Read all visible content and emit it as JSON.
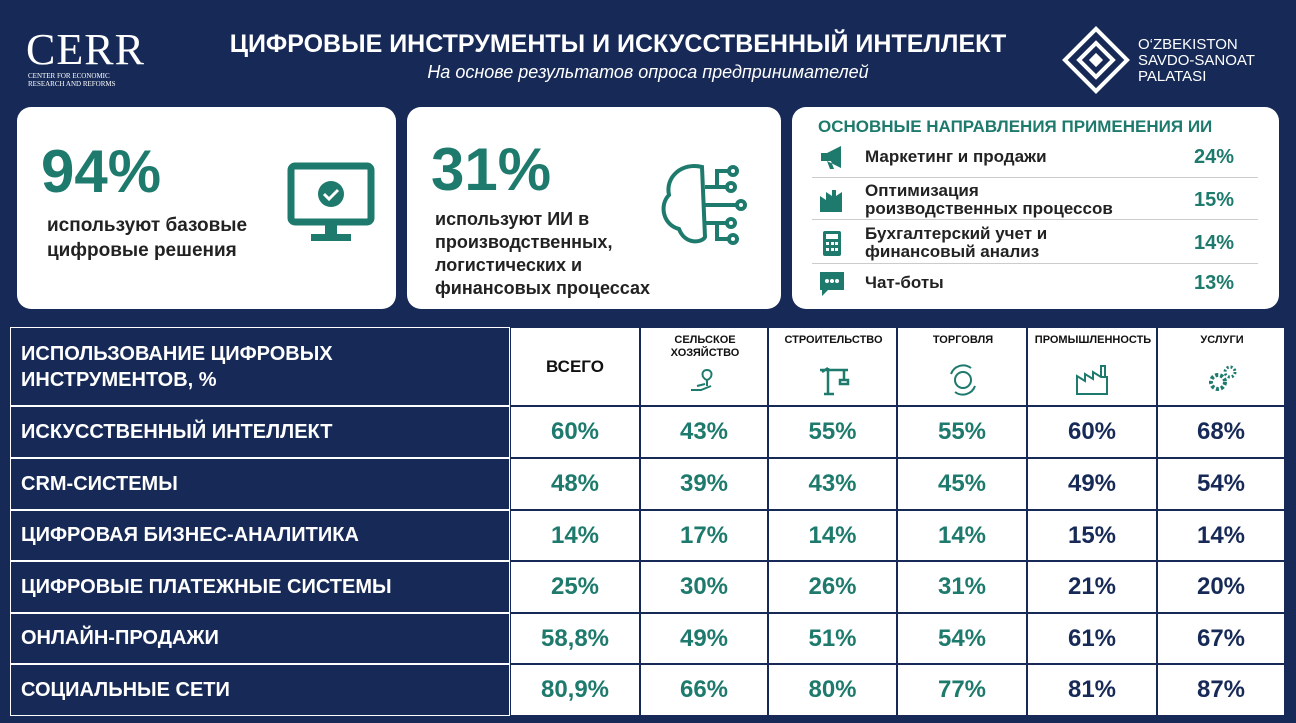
{
  "header": {
    "title": "ЦИФРОВЫЕ ИНСТРУМЕНТЫ И ИСКУССТВЕННЫЙ ИНТЕЛЛЕКТ",
    "subtitle": "На основе результатов опроса предпринимателей",
    "logo_left": {
      "name": "CERR",
      "lines": [
        "CENTER FOR ECONOMIC",
        "RESEARCH AND REFORMS"
      ]
    },
    "logo_right": {
      "lines": [
        "O‘ZBEKISTON",
        "SAVDO-SANOAT",
        "PALATASI"
      ]
    }
  },
  "cards": [
    {
      "value": "94%",
      "text": "используют базовые цифровые решения"
    },
    {
      "value": "31%",
      "text": "используют ИИ в производственных, логистических и финансовых процессах"
    }
  ],
  "ai_directions": {
    "title": "ОСНОВНЫЕ НАПРАВЛЕНИЯ ПРИМЕНЕНИЯ ИИ",
    "items": [
      {
        "label": "Маркетинг и продажи",
        "value": "24%"
      },
      {
        "label": "Оптимизация роизводственных процессов",
        "value": "15%"
      },
      {
        "label": "Бухгалтерский учет и финансовый анализ",
        "value": "14%"
      },
      {
        "label": "Чат-боты",
        "value": "13%"
      }
    ]
  },
  "table": {
    "header": "ИСПОЛЬЗОВАНИЕ ЦИФРОВЫХ ИНСТРУМЕНТОВ, %",
    "columns": [
      "ВСЕГО",
      "СЕЛЬСКОЕ ХОЗЯЙСТВО",
      "СТРОИТЕЛЬСТВО",
      "ТОРГОВЛЯ",
      "ПРОМЫШЛЕННОСТЬ",
      "УСЛУГИ"
    ],
    "rows": [
      {
        "label": "ИСКУССТВЕННЫЙ ИНТЕЛЛЕКТ",
        "values": [
          "60%",
          "43%",
          "55%",
          "55%",
          "60%",
          "68%"
        ]
      },
      {
        "label": "CRM-СИСТЕМЫ",
        "values": [
          "48%",
          "39%",
          "43%",
          "45%",
          "49%",
          "54%"
        ]
      },
      {
        "label": "ЦИФРОВАЯ БИЗНЕС-АНАЛИТИКА",
        "values": [
          "14%",
          "17%",
          "14%",
          "14%",
          "15%",
          "14%"
        ]
      },
      {
        "label": "ЦИФРОВЫЕ ПЛАТЕЖНЫЕ СИСТЕМЫ",
        "values": [
          "25%",
          "30%",
          "26%",
          "31%",
          "21%",
          "20%"
        ]
      },
      {
        "label": "ОНЛАЙН-ПРОДАЖИ",
        "values": [
          "58,8%",
          "49%",
          "51%",
          "54%",
          "61%",
          "67%"
        ]
      },
      {
        "label": "СОЦИАЛЬНЫЕ СЕТИ",
        "values": [
          "80,9%",
          "66%",
          "80%",
          "77%",
          "81%",
          "87%"
        ]
      }
    ]
  }
}
